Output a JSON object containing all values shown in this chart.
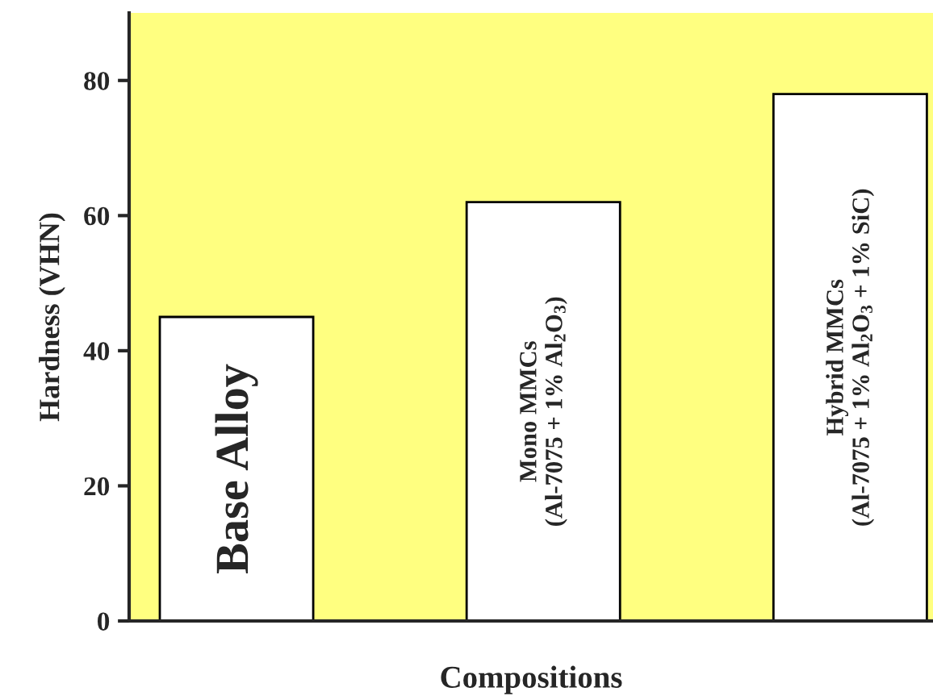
{
  "chart_data": {
    "type": "bar",
    "xlabel": "Compositions",
    "ylabel": "Hardness (VHN)",
    "categories": [
      "Base Alloy",
      "Mono MMCs\n(Al-7075 + 1% Al$_{2}$O$_{3}$)",
      "Hybrid MMCs\n(Al-7075 + 1% Al$_{2}$O$_{3}$ + 1% SiC)"
    ],
    "values": [
      45,
      62,
      78
    ],
    "color": "#ffffff",
    "ylim": [
      0,
      90
    ],
    "yticks": [
      0,
      20,
      40,
      60,
      80
    ],
    "tick_labels": "y",
    "grid": false,
    "legend": false
  }
}
